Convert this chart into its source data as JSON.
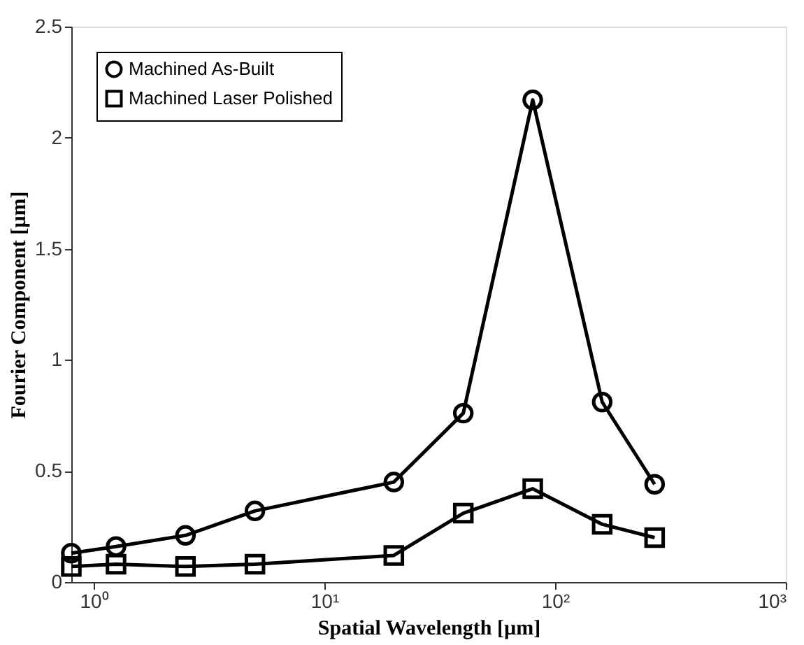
{
  "chart_data": {
    "type": "line",
    "xlabel": "Spatial Wavelength [µm]",
    "ylabel": "Fourier Component [µm]",
    "x": [
      0.8,
      1.25,
      2.5,
      5,
      20,
      40,
      80,
      160,
      270
    ],
    "series": [
      {
        "name": "Machined As-Built",
        "color": "#000000",
        "marker": "circle",
        "values": [
          0.13,
          0.16,
          0.21,
          0.32,
          0.45,
          0.76,
          2.17,
          0.81,
          0.44
        ]
      },
      {
        "name": "Machined Laser Polished",
        "color": "#000000",
        "marker": "square",
        "values": [
          0.07,
          0.08,
          0.07,
          0.08,
          0.12,
          0.31,
          0.42,
          0.26,
          0.2
        ]
      }
    ],
    "log": "x",
    "xlim": [
      0.8,
      1000
    ],
    "xticks": [
      {
        "value": 1,
        "label": "10⁰"
      },
      {
        "value": 10,
        "label": "10¹"
      },
      {
        "value": 100,
        "label": "10²"
      },
      {
        "value": 1000,
        "label": "10³"
      }
    ],
    "ylim": [
      0,
      2.5
    ],
    "yticks": [
      0,
      0.5,
      1,
      1.5,
      2,
      2.5
    ],
    "grid": false,
    "legend": "top left",
    "line_style": "solid"
  }
}
